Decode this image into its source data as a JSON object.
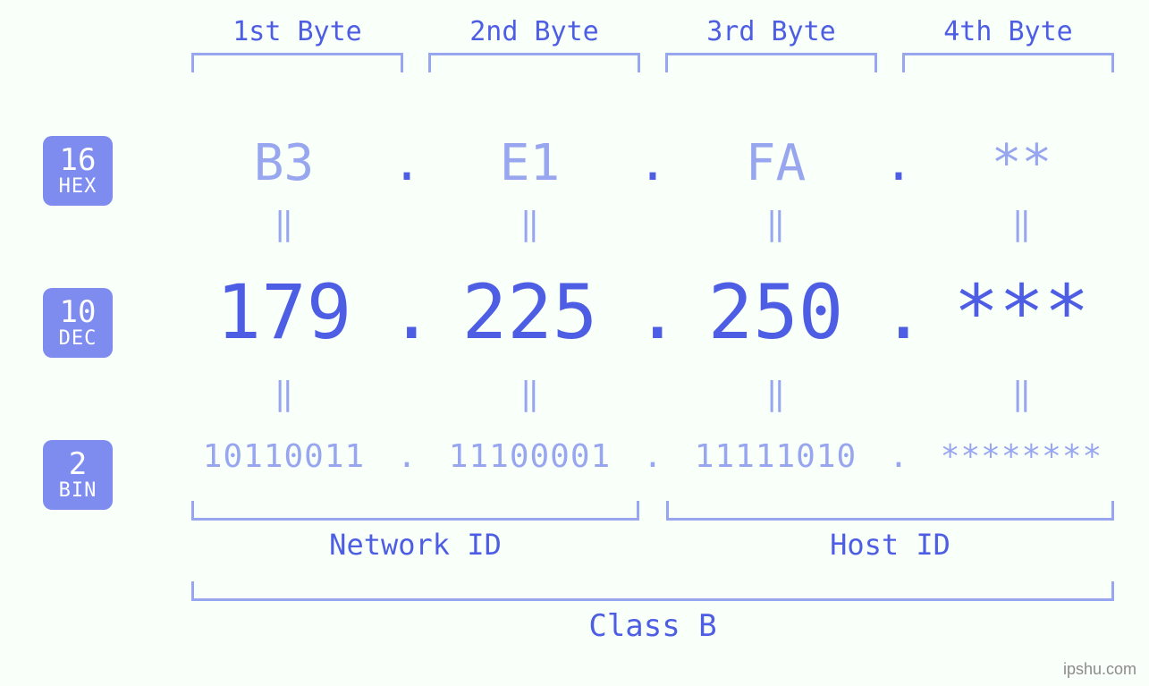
{
  "colors": {
    "background": "#f9fff9",
    "main_blue": "#4e5ee4",
    "light_blue": "#98a6f0",
    "badge_bg": "#7e8cf0",
    "badge_text": "#ffffff"
  },
  "fonts": {
    "family": "monospace",
    "byte_label_size_pt": 30,
    "hex_size_pt": 56,
    "dec_size_pt": 84,
    "bin_size_pt": 36,
    "equals_size_pt": 36,
    "badge_num_size_pt": 34,
    "badge_name_size_pt": 22,
    "bottom_label_size_pt": 32,
    "class_label_size_pt": 34
  },
  "byte_labels": [
    "1st Byte",
    "2nd Byte",
    "3rd Byte",
    "4th Byte"
  ],
  "bases": [
    {
      "num": "16",
      "name": "HEX"
    },
    {
      "num": "10",
      "name": "DEC"
    },
    {
      "num": "2",
      "name": "BIN"
    }
  ],
  "hex": [
    "B3",
    "E1",
    "FA",
    "**"
  ],
  "dec": [
    "179",
    "225",
    "250",
    "***"
  ],
  "bin": [
    "10110011",
    "11100001",
    "11111010",
    "********"
  ],
  "equals_glyph": "‖",
  "separator": ".",
  "network_id_label": "Network ID",
  "host_id_label": "Host ID",
  "class_label": "Class B",
  "watermark": "ipshu.com"
}
